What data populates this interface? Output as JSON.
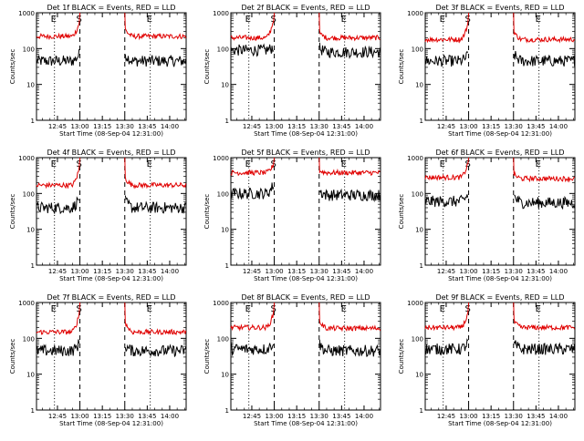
{
  "colors": {
    "events": "#000000",
    "lld": "#e00000",
    "background": "#ffffff"
  },
  "chart_data": [
    {
      "type": "line",
      "title": "Det 1f BLACK = Events, RED = LLD",
      "ylabel": "Counts/sec",
      "xlabel": "Start Time (08-Sep-04 12:31:00)",
      "x_ticks": [
        "12:45",
        "13:00",
        "13:15",
        "13:30",
        "13:45",
        "14:00"
      ],
      "xlim": [
        "12:31",
        "14:11"
      ],
      "y_scale": "log",
      "ylim": [
        1,
        1000
      ],
      "y_ticks": [
        "1",
        "10",
        "100",
        "1000"
      ],
      "markers": [
        {
          "label": "E",
          "time": "12:43",
          "style": "dotted"
        },
        {
          "label": "S",
          "time": "13:00",
          "style": "dashed"
        },
        {
          "label": "",
          "time": "13:30",
          "style": "dashed"
        },
        {
          "label": "E",
          "time": "13:47",
          "style": "dotted"
        }
      ],
      "series": [
        {
          "name": "BLACK = Events",
          "color": "#000000",
          "pre_level": 45,
          "pre_end": 75,
          "post_start": 85,
          "post_level": 45
        },
        {
          "name": "RED = LLD",
          "color": "#e00000",
          "pre_level": 220,
          "pre_end": 600,
          "post_start": 400,
          "post_level": 220
        }
      ]
    },
    {
      "type": "line",
      "title": "Det 2f BLACK = Events, RED = LLD",
      "ylabel": "Counts/sec",
      "xlabel": "Start Time (08-Sep-04 12:31:00)",
      "x_ticks": [
        "12:45",
        "13:00",
        "13:15",
        "13:30",
        "13:45",
        "14:00"
      ],
      "xlim": [
        "12:31",
        "14:11"
      ],
      "y_scale": "log",
      "ylim": [
        1,
        1000
      ],
      "y_ticks": [
        "1",
        "10",
        "100",
        "1000"
      ],
      "markers": [
        {
          "label": "E",
          "time": "12:43",
          "style": "dotted"
        },
        {
          "label": "S",
          "time": "13:00",
          "style": "dashed"
        },
        {
          "label": "",
          "time": "13:30",
          "style": "dashed"
        },
        {
          "label": "E",
          "time": "13:47",
          "style": "dotted"
        }
      ],
      "series": [
        {
          "name": "BLACK = Events",
          "color": "#000000",
          "pre_level": 90,
          "pre_end": 120,
          "post_start": 110,
          "post_level": 80
        },
        {
          "name": "RED = LLD",
          "color": "#e00000",
          "pre_level": 200,
          "pre_end": 800,
          "post_start": 300,
          "post_level": 200
        }
      ]
    },
    {
      "type": "line",
      "title": "Det 3f BLACK = Events, RED = LLD",
      "ylabel": "Counts/sec",
      "xlabel": "Start Time (08-Sep-04 12:31:00)",
      "x_ticks": [
        "12:45",
        "13:00",
        "13:15",
        "13:30",
        "13:45",
        "14:00"
      ],
      "xlim": [
        "12:31",
        "14:11"
      ],
      "y_scale": "log",
      "ylim": [
        1,
        1000
      ],
      "y_ticks": [
        "1",
        "10",
        "100",
        "1000"
      ],
      "markers": [
        {
          "label": "E",
          "time": "12:43",
          "style": "dotted"
        },
        {
          "label": "S",
          "time": "13:00",
          "style": "dashed"
        },
        {
          "label": "",
          "time": "13:30",
          "style": "dashed"
        },
        {
          "label": "E",
          "time": "13:47",
          "style": "dotted"
        }
      ],
      "series": [
        {
          "name": "BLACK = Events",
          "color": "#000000",
          "pre_level": 45,
          "pre_end": 70,
          "post_start": 80,
          "post_level": 45
        },
        {
          "name": "RED = LLD",
          "color": "#e00000",
          "pre_level": 180,
          "pre_end": 600,
          "post_start": 350,
          "post_level": 180
        }
      ]
    },
    {
      "type": "line",
      "title": "Det 4f BLACK = Events, RED = LLD",
      "ylabel": "Counts/sec",
      "xlabel": "Start Time (08-Sep-04 12:31:00)",
      "x_ticks": [
        "12:45",
        "13:00",
        "13:15",
        "13:30",
        "13:45",
        "14:00"
      ],
      "xlim": [
        "12:31",
        "14:11"
      ],
      "y_scale": "log",
      "ylim": [
        1,
        1000
      ],
      "y_ticks": [
        "1",
        "10",
        "100",
        "1000"
      ],
      "markers": [
        {
          "label": "E",
          "time": "12:43",
          "style": "dotted"
        },
        {
          "label": "S",
          "time": "13:00",
          "style": "dashed"
        },
        {
          "label": "",
          "time": "13:30",
          "style": "dashed"
        },
        {
          "label": "E",
          "time": "13:47",
          "style": "dotted"
        }
      ],
      "series": [
        {
          "name": "BLACK = Events",
          "color": "#000000",
          "pre_level": 40,
          "pre_end": 90,
          "post_start": 70,
          "post_level": 40
        },
        {
          "name": "RED = LLD",
          "color": "#e00000",
          "pre_level": 170,
          "pre_end": 600,
          "post_start": 320,
          "post_level": 170
        }
      ]
    },
    {
      "type": "line",
      "title": "Det 5f BLACK = Events, RED = LLD",
      "ylabel": "Counts/sec",
      "xlabel": "Start Time (08-Sep-04 12:31:00)",
      "x_ticks": [
        "12:45",
        "13:00",
        "13:15",
        "13:30",
        "13:45",
        "14:00"
      ],
      "xlim": [
        "12:31",
        "14:11"
      ],
      "y_scale": "log",
      "ylim": [
        1,
        1000
      ],
      "y_ticks": [
        "1",
        "10",
        "100",
        "1000"
      ],
      "markers": [
        {
          "label": "E",
          "time": "12:43",
          "style": "dotted"
        },
        {
          "label": "S",
          "time": "13:00",
          "style": "dashed"
        },
        {
          "label": "",
          "time": "13:30",
          "style": "dashed"
        },
        {
          "label": "E",
          "time": "13:47",
          "style": "dotted"
        }
      ],
      "series": [
        {
          "name": "BLACK = Events",
          "color": "#000000",
          "pre_level": 100,
          "pre_end": 200,
          "post_start": 130,
          "post_level": 90
        },
        {
          "name": "RED = LLD",
          "color": "#e00000",
          "pre_level": 380,
          "pre_end": 700,
          "post_start": 450,
          "post_level": 380
        }
      ]
    },
    {
      "type": "line",
      "title": "Det 6f BLACK = Events, RED = LLD",
      "ylabel": "Counts/sec",
      "xlabel": "Start Time (08-Sep-04 12:31:00)",
      "x_ticks": [
        "12:45",
        "13:00",
        "13:15",
        "13:30",
        "13:45",
        "14:00"
      ],
      "xlim": [
        "12:31",
        "14:11"
      ],
      "y_scale": "log",
      "ylim": [
        1,
        1000
      ],
      "y_ticks": [
        "1",
        "10",
        "100",
        "1000"
      ],
      "markers": [
        {
          "label": "E",
          "time": "12:43",
          "style": "dotted"
        },
        {
          "label": "S",
          "time": "13:00",
          "style": "dashed"
        },
        {
          "label": "",
          "time": "13:30",
          "style": "dashed"
        },
        {
          "label": "E",
          "time": "13:47",
          "style": "dotted"
        }
      ],
      "series": [
        {
          "name": "BLACK = Events",
          "color": "#000000",
          "pre_level": 60,
          "pre_end": 100,
          "post_start": 100,
          "post_level": 55
        },
        {
          "name": "RED = LLD",
          "color": "#e00000",
          "pre_level": 280,
          "pre_end": 800,
          "post_start": 380,
          "post_level": 260
        }
      ]
    },
    {
      "type": "line",
      "title": "Det 7f BLACK = Events, RED = LLD",
      "ylabel": "Counts/sec",
      "xlabel": "Start Time (08-Sep-04 12:31:00)",
      "x_ticks": [
        "12:45",
        "13:00",
        "13:15",
        "13:30",
        "13:45",
        "14:00"
      ],
      "xlim": [
        "12:31",
        "14:11"
      ],
      "y_scale": "log",
      "ylim": [
        1,
        1000
      ],
      "y_ticks": [
        "1",
        "10",
        "100",
        "1000"
      ],
      "markers": [
        {
          "label": "E",
          "time": "12:43",
          "style": "dotted"
        },
        {
          "label": "S",
          "time": "13:00",
          "style": "dashed"
        },
        {
          "label": "",
          "time": "13:30",
          "style": "dashed"
        },
        {
          "label": "E",
          "time": "13:47",
          "style": "dotted"
        }
      ],
      "series": [
        {
          "name": "BLACK = Events",
          "color": "#000000",
          "pre_level": 45,
          "pre_end": 80,
          "post_start": 70,
          "post_level": 45
        },
        {
          "name": "RED = LLD",
          "color": "#e00000",
          "pre_level": 150,
          "pre_end": 600,
          "post_start": 350,
          "post_level": 150
        }
      ]
    },
    {
      "type": "line",
      "title": "Det 8f BLACK = Events, RED = LLD",
      "ylabel": "Counts/sec",
      "xlabel": "Start Time (08-Sep-04 12:31:00)",
      "x_ticks": [
        "12:45",
        "13:00",
        "13:15",
        "13:30",
        "13:45",
        "14:00"
      ],
      "xlim": [
        "12:31",
        "14:11"
      ],
      "y_scale": "log",
      "ylim": [
        1,
        1000
      ],
      "y_ticks": [
        "1",
        "10",
        "100",
        "1000"
      ],
      "markers": [
        {
          "label": "E",
          "time": "12:43",
          "style": "dotted"
        },
        {
          "label": "S",
          "time": "13:00",
          "style": "dashed"
        },
        {
          "label": "",
          "time": "13:30",
          "style": "dashed"
        },
        {
          "label": "E",
          "time": "13:47",
          "style": "dotted"
        }
      ],
      "series": [
        {
          "name": "BLACK = Events",
          "color": "#000000",
          "pre_level": 50,
          "pre_end": 90,
          "post_start": 80,
          "post_level": 45
        },
        {
          "name": "RED = LLD",
          "color": "#e00000",
          "pre_level": 200,
          "pre_end": 600,
          "post_start": 350,
          "post_level": 190
        }
      ]
    },
    {
      "type": "line",
      "title": "Det 9f BLACK = Events, RED = LLD",
      "ylabel": "Counts/sec",
      "xlabel": "Start Time (08-Sep-04 12:31:00)",
      "x_ticks": [
        "12:45",
        "13:00",
        "13:15",
        "13:30",
        "13:45",
        "14:00"
      ],
      "xlim": [
        "12:31",
        "14:11"
      ],
      "y_scale": "log",
      "ylim": [
        1,
        1000
      ],
      "y_ticks": [
        "1",
        "10",
        "100",
        "1000"
      ],
      "markers": [
        {
          "label": "E",
          "time": "12:43",
          "style": "dotted"
        },
        {
          "label": "S",
          "time": "13:00",
          "style": "dashed"
        },
        {
          "label": "",
          "time": "13:30",
          "style": "dashed"
        },
        {
          "label": "E",
          "time": "13:47",
          "style": "dotted"
        }
      ],
      "series": [
        {
          "name": "BLACK = Events",
          "color": "#000000",
          "pre_level": 50,
          "pre_end": 80,
          "post_start": 80,
          "post_level": 50
        },
        {
          "name": "RED = LLD",
          "color": "#e00000",
          "pre_level": 200,
          "pre_end": 600,
          "post_start": 350,
          "post_level": 200
        }
      ]
    }
  ]
}
